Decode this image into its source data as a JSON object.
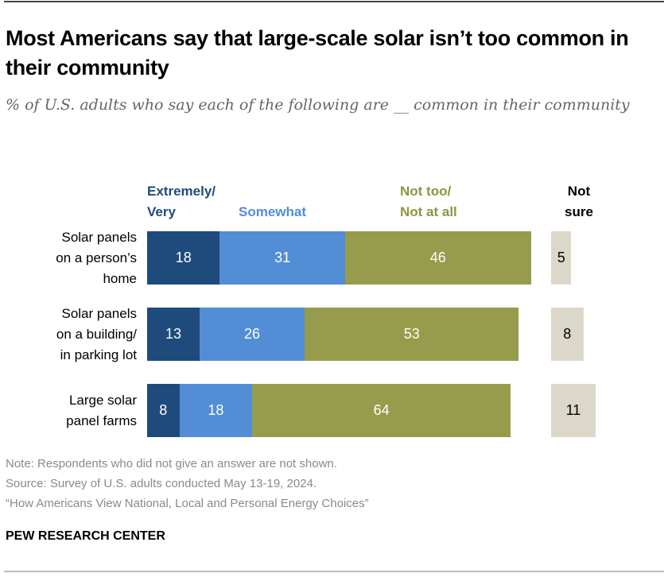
{
  "title": "Most Americans say that large-scale solar isn’t too common in their community",
  "subtitle": "% of U.S. adults who say each of the following are __ common in their community",
  "colors": {
    "extremely_very": "#1f4a7c",
    "somewhat": "#538dd5",
    "not_too": "#969c4b",
    "not_sure": "#dcd8c9",
    "not_too_label": "#8e9440"
  },
  "chart_data": {
    "type": "bar",
    "orientation": "horizontal-stacked",
    "title": "Most Americans say that large-scale solar isn’t too common in their community",
    "subtitle": "% of U.S. adults who say each of the following are __ common in their community",
    "categories": [
      "Solar panels on a person’s home",
      "Solar panels on a building/ in parking lot",
      "Large solar panel farms"
    ],
    "category_lines": [
      [
        "Solar panels",
        "on a person’s",
        "home"
      ],
      [
        "Solar panels",
        "on a building/",
        "in parking lot"
      ],
      [
        "Large solar",
        "panel farms"
      ]
    ],
    "series": [
      {
        "name": "Extremely/ Very",
        "label_lines": [
          "Extremely/",
          "Very"
        ],
        "values": [
          18,
          13,
          8
        ]
      },
      {
        "name": "Somewhat",
        "label_lines": [
          "Somewhat"
        ],
        "values": [
          31,
          26,
          18
        ]
      },
      {
        "name": "Not too/ Not at all",
        "label_lines": [
          "Not too/",
          "Not at all"
        ],
        "values": [
          46,
          53,
          64
        ]
      },
      {
        "name": "Not sure",
        "label_lines": [
          "Not",
          "sure"
        ],
        "values": [
          5,
          8,
          11
        ]
      }
    ],
    "xlabel": "",
    "ylabel": "",
    "grid": false
  },
  "footer": {
    "note": "Note: Respondents who did not give an answer are not shown.",
    "source": "Source: Survey of U.S. adults conducted May 13-19, 2024.",
    "report": "“How Americans View National, Local and Personal Energy Choices”",
    "brand": "PEW RESEARCH CENTER"
  }
}
